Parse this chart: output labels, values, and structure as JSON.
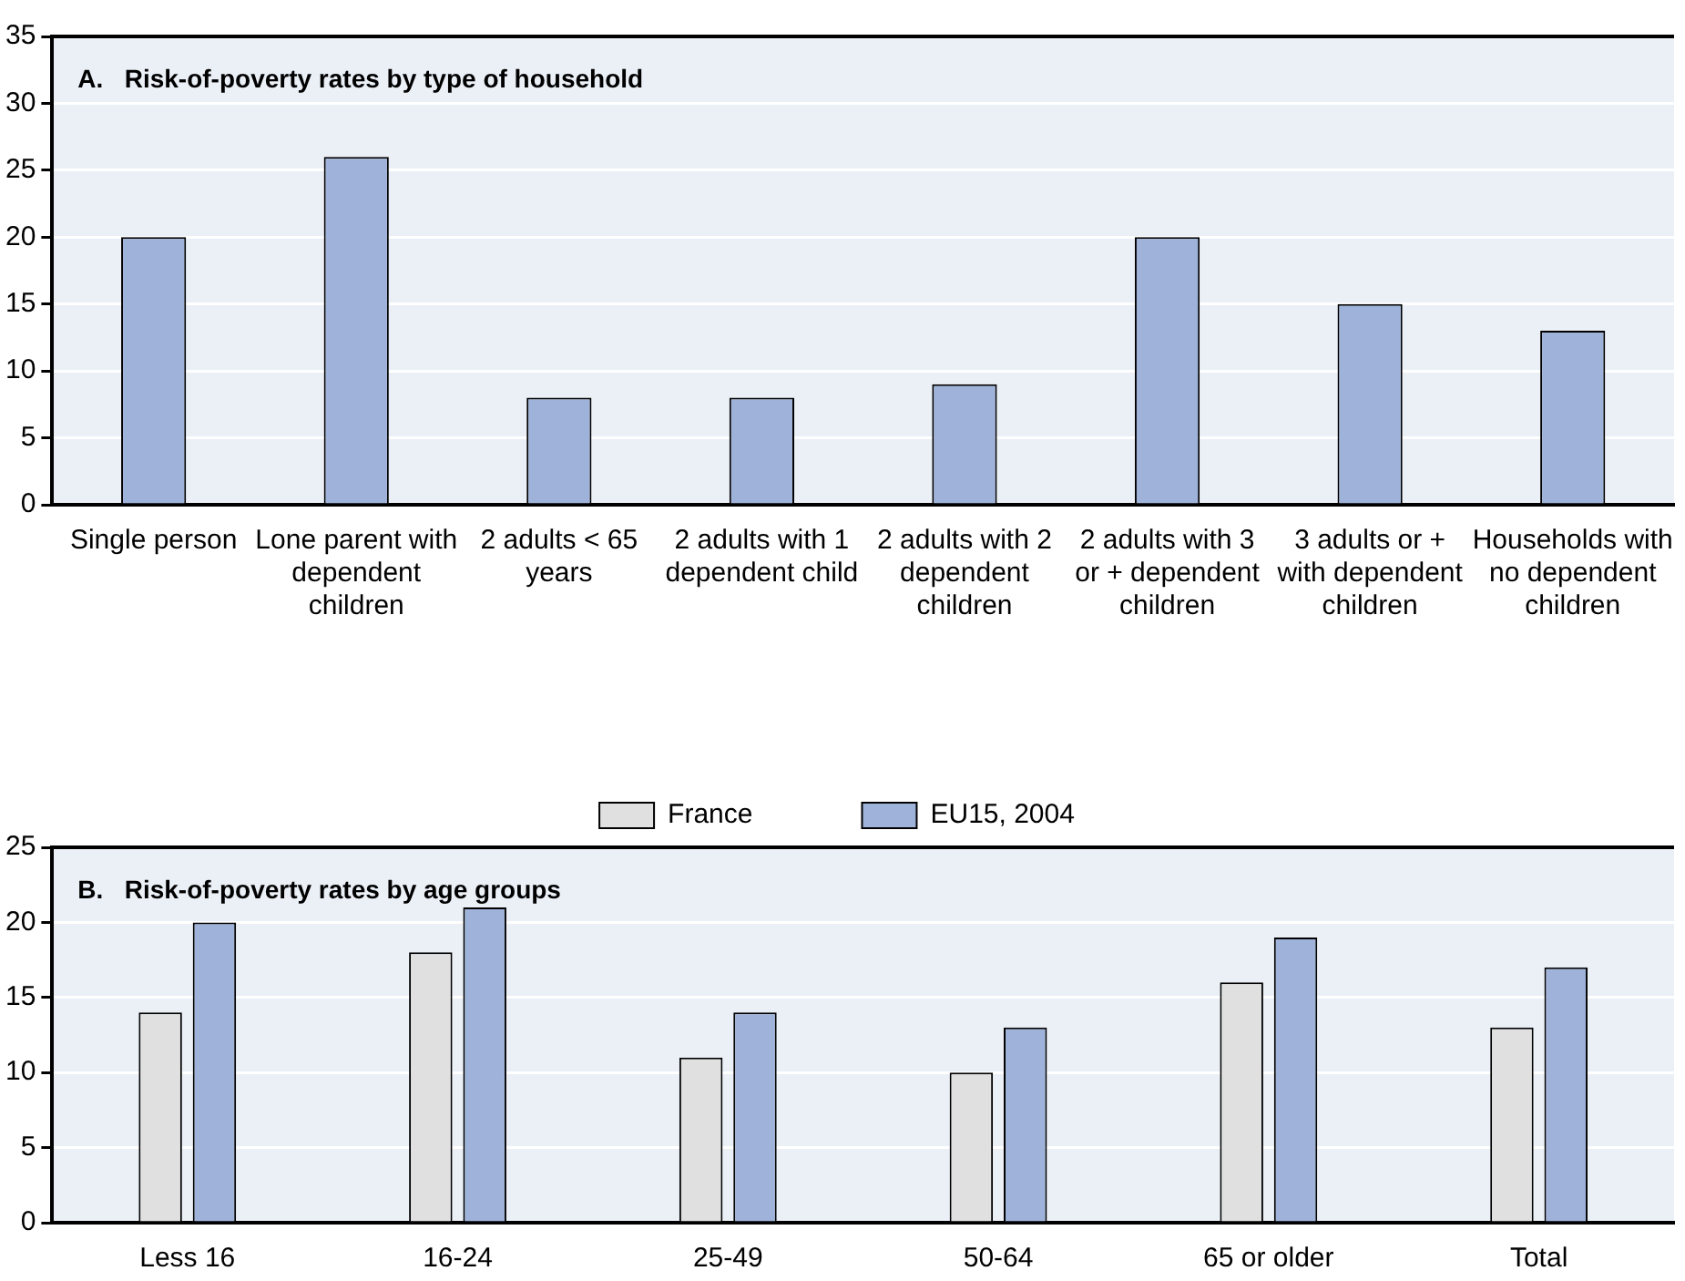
{
  "chart_data": [
    {
      "type": "bar",
      "title": "A.   Risk-of-poverty rates by type of household",
      "categories": [
        "Single person",
        "Lone parent with dependent children",
        "2 adults < 65 years",
        "2 adults with 1 dependent child",
        "2 adults with 2 dependent children",
        "2 adults with 3 or + dependent children",
        "3 adults or + with dependent children",
        "Households with no dependent children"
      ],
      "series": [
        {
          "color": "#9fb3da",
          "values": [
            20,
            26,
            8,
            8,
            9,
            20,
            15,
            13
          ]
        }
      ],
      "ylim": [
        0,
        35
      ],
      "yticks": [
        0,
        5,
        10,
        15,
        20,
        25,
        30,
        35
      ],
      "grid": "y",
      "legend": false
    },
    {
      "type": "bar",
      "title": "B.   Risk-of-poverty rates by age groups",
      "categories": [
        "Less 16",
        "16-24",
        "25-49",
        "50-64",
        "65 or older",
        "Total"
      ],
      "series": [
        {
          "name": "France",
          "color": "#e0e0e0",
          "values": [
            14,
            18,
            11,
            10,
            16,
            13
          ]
        },
        {
          "name": "EU15, 2004",
          "color": "#9fb3da",
          "values": [
            20,
            21,
            14,
            13,
            19,
            17
          ]
        }
      ],
      "ylim": [
        0,
        25
      ],
      "yticks": [
        0,
        5,
        10,
        15,
        20,
        25
      ],
      "grid": "y",
      "legend": "top"
    }
  ]
}
